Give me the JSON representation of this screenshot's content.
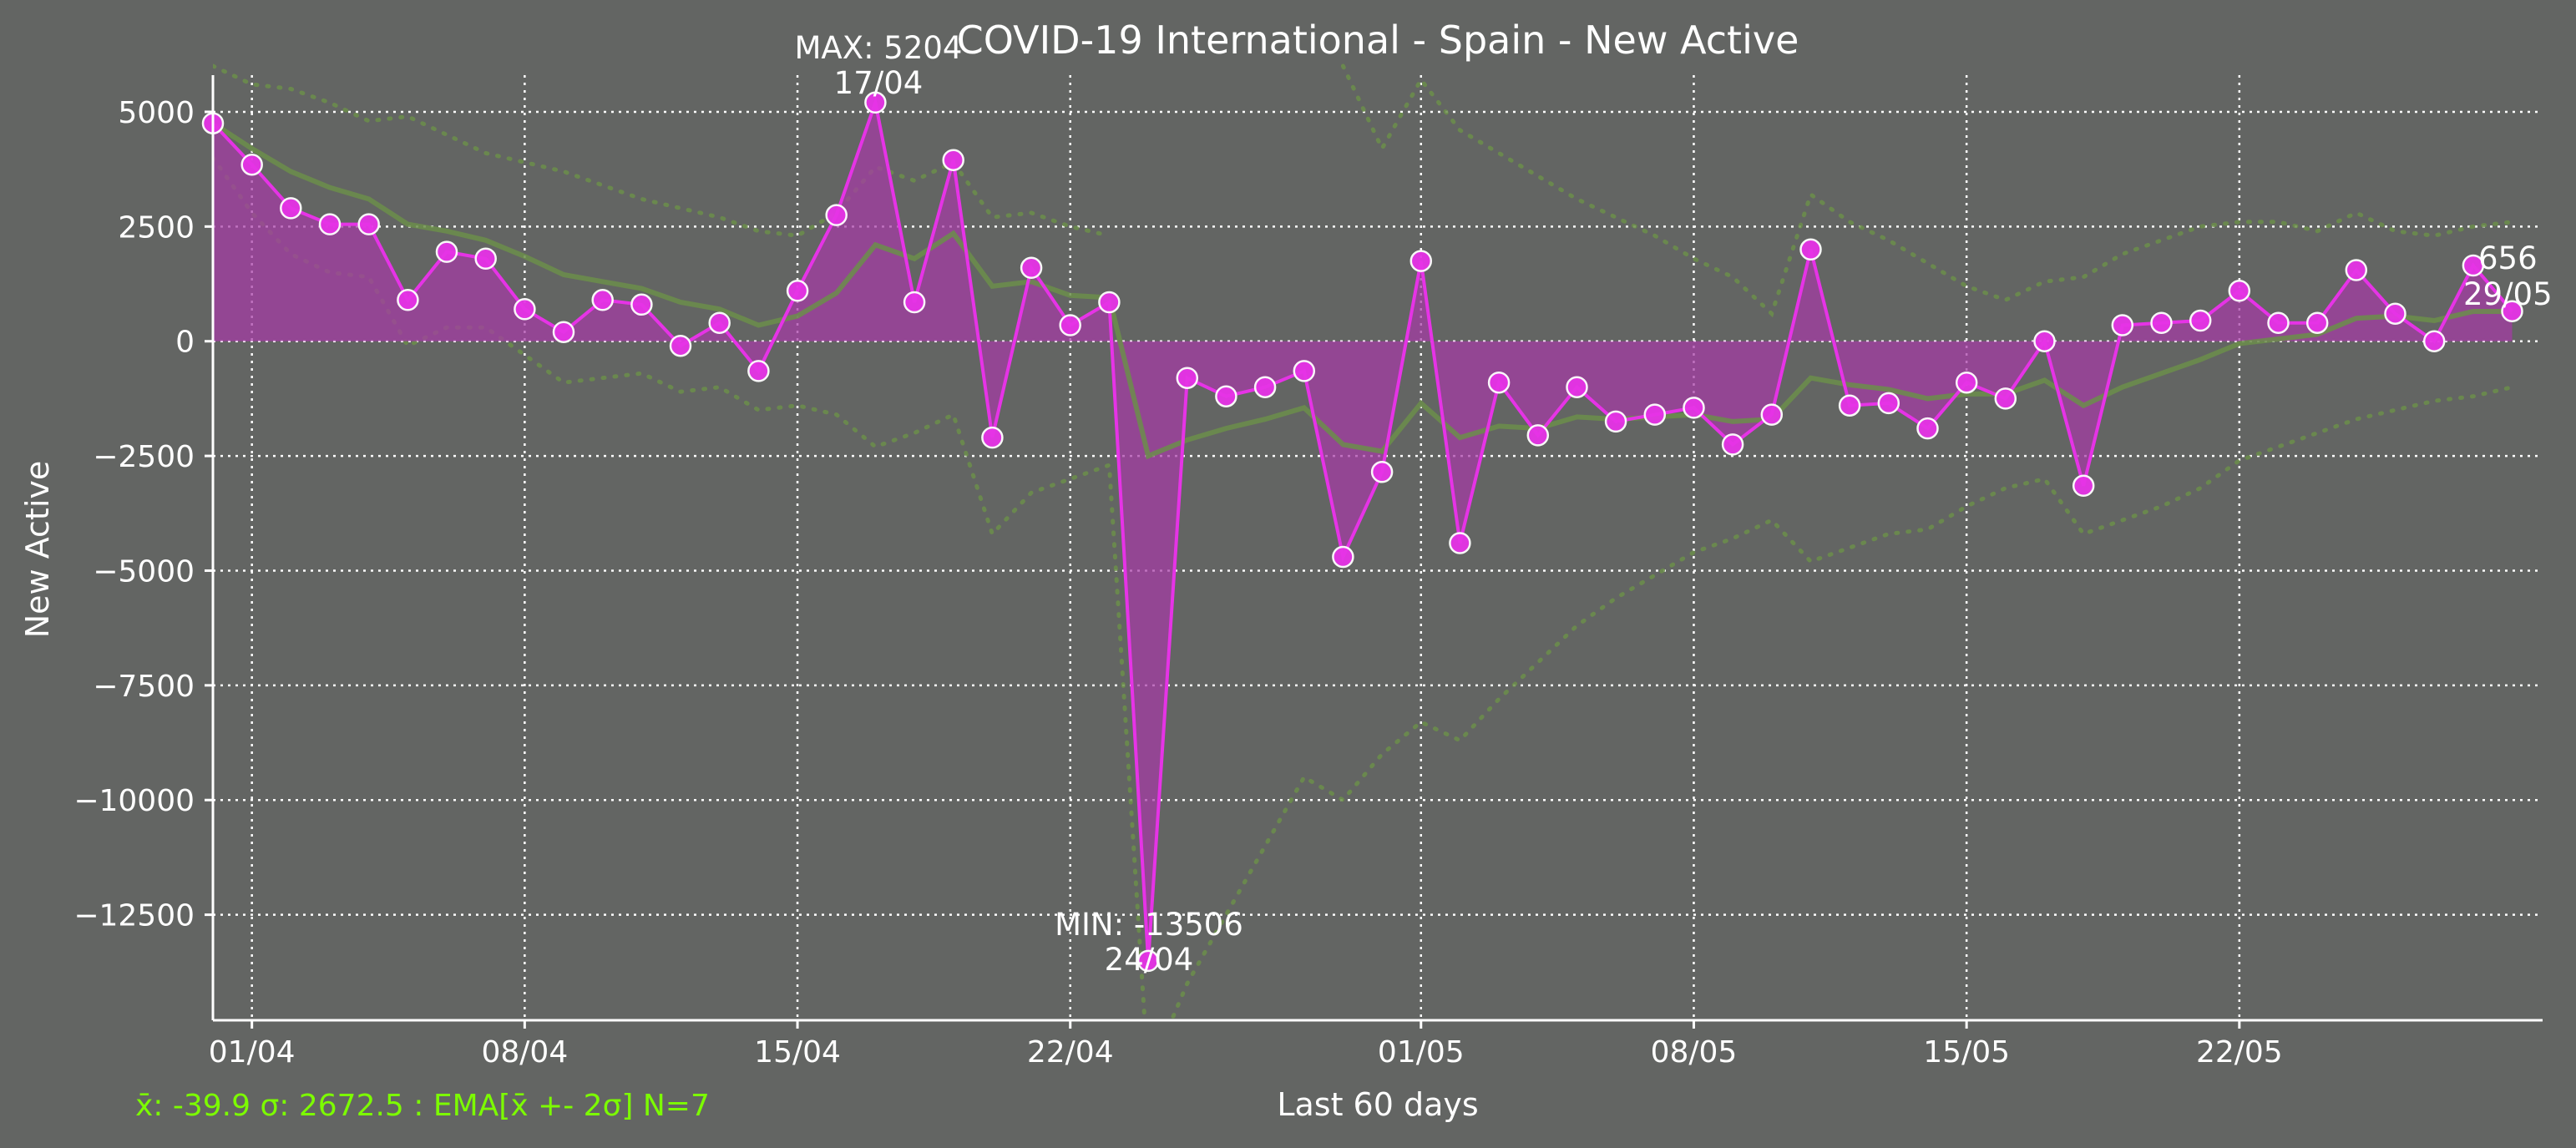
{
  "chart_data": {
    "type": "line",
    "title": "COVID-19 International - Spain - New Active",
    "xlabel": "Last 60 days",
    "ylabel": "New Active",
    "ylim": [
      -14800,
      5800
    ],
    "yticks": [
      5000,
      2500,
      0,
      -2500,
      -5000,
      -7500,
      -10000,
      -12500
    ],
    "ytick_labels": [
      "5000",
      "2500",
      "0",
      "−2500",
      "−5000",
      "−7500",
      "−10000",
      "−12500"
    ],
    "xticks": [
      {
        "label": "01/04",
        "index": 1
      },
      {
        "label": "08/04",
        "index": 8
      },
      {
        "label": "15/04",
        "index": 15
      },
      {
        "label": "22/04",
        "index": 22
      },
      {
        "label": "01/05",
        "index": 31
      },
      {
        "label": "08/05",
        "index": 38
      },
      {
        "label": "15/05",
        "index": 45
      },
      {
        "label": "22/05",
        "index": 52
      }
    ],
    "dates": [
      "31/03",
      "01/04",
      "02/04",
      "03/04",
      "04/04",
      "05/04",
      "06/04",
      "07/04",
      "08/04",
      "09/04",
      "10/04",
      "11/04",
      "12/04",
      "13/04",
      "14/04",
      "15/04",
      "16/04",
      "17/04",
      "18/04",
      "19/04",
      "20/04",
      "21/04",
      "22/04",
      "23/04",
      "24/04",
      "25/04",
      "26/04",
      "27/04",
      "28/04",
      "29/04",
      "30/04",
      "01/05",
      "02/05",
      "03/05",
      "04/05",
      "05/05",
      "06/05",
      "07/05",
      "08/05",
      "09/05",
      "10/05",
      "11/05",
      "12/05",
      "13/05",
      "14/05",
      "15/05",
      "16/05",
      "17/05",
      "18/05",
      "19/05",
      "20/05",
      "21/05",
      "22/05",
      "23/05",
      "24/05",
      "25/05",
      "26/05",
      "27/05",
      "28/05",
      "29/05"
    ],
    "series": [
      {
        "values": [
          4750,
          3850,
          2900,
          2550,
          2550,
          900,
          1950,
          1800,
          700,
          200,
          900,
          800,
          -100,
          400,
          -650,
          1100,
          2750,
          5204,
          850,
          3950,
          -2100,
          1600,
          350,
          850,
          -13506,
          -800,
          -1200,
          -1000,
          -650,
          -4700,
          -2850,
          1750,
          -4400,
          -900,
          -2050,
          -1000,
          -1750,
          -1600,
          -1450,
          -2250,
          -1600,
          2000,
          -1400,
          -1350,
          -1900,
          -900,
          -1250,
          0,
          -3150,
          350,
          400,
          450,
          1100,
          400,
          400,
          1550,
          600,
          0,
          1650,
          656
        ],
        "color": "#e633e6"
      },
      {
        "name": "EMA",
        "values": [
          4750,
          4200,
          3700,
          3350,
          3100,
          2550,
          2400,
          2200,
          1850,
          1450,
          1300,
          1150,
          850,
          700,
          350,
          550,
          1050,
          2100,
          1800,
          2350,
          1200,
          1300,
          1000,
          950,
          -2500,
          -2150,
          -1900,
          -1700,
          -1450,
          -2250,
          -2400,
          -1350,
          -2100,
          -1850,
          -1900,
          -1650,
          -1700,
          -1650,
          -1600,
          -1750,
          -1700,
          -800,
          -950,
          -1050,
          -1250,
          -1150,
          -1150,
          -850,
          -1400,
          -1000,
          -700,
          -400,
          -50,
          50,
          150,
          500,
          550,
          450,
          650,
          650
        ],
        "color": "#6b8e4a"
      },
      {
        "name": "EMA + 2σ",
        "values": [
          6000,
          5600,
          5500,
          5200,
          4800,
          4900,
          4500,
          4100,
          3900,
          3700,
          3400,
          3100,
          2900,
          2700,
          2400,
          2300,
          2800,
          3800,
          3500,
          3900,
          2700,
          2800,
          2500,
          2300,
          null,
          null,
          null,
          null,
          null,
          6000,
          4200,
          5700,
          4600,
          4100,
          3600,
          3100,
          2700,
          2300,
          1800,
          1400,
          600,
          3200,
          2600,
          2200,
          1700,
          1200,
          900,
          1300,
          1400,
          1900,
          2200,
          2500,
          2600,
          2600,
          2400,
          2800,
          2400,
          2300,
          2500,
          2600
        ],
        "color": "#6b8e4a"
      },
      {
        "name": "EMA - 2σ",
        "values": [
          4000,
          2800,
          1900,
          1500,
          1400,
          -100,
          300,
          300,
          -300,
          -900,
          -800,
          -700,
          -1100,
          -1000,
          -1500,
          -1400,
          -1600,
          -2300,
          -2000,
          -1600,
          -4200,
          -3300,
          -3000,
          -2700,
          -16000,
          -14000,
          -12500,
          -11000,
          -9500,
          -10000,
          -9000,
          -8300,
          -8700,
          -7800,
          -7000,
          -6200,
          -5600,
          -5100,
          -4600,
          -4300,
          -3900,
          -4800,
          -4500,
          -4200,
          -4100,
          -3600,
          -3200,
          -3000,
          -4200,
          -3900,
          -3600,
          -3200,
          -2600,
          -2300,
          -2000,
          -1700,
          -1500,
          -1300,
          -1200,
          -1000
        ],
        "color": "#6b8e4a"
      }
    ],
    "annotations": {
      "max_label": "MAX: 5204",
      "max_date": "17/04",
      "min_label": "MIN: -13506",
      "min_date": "24/04",
      "last_value": "656",
      "last_date": "29/05"
    },
    "stats_line": "x̄: -39.9 σ: 2672.5 : EMA[x̄ +- 2σ] N=7",
    "grid": true
  }
}
